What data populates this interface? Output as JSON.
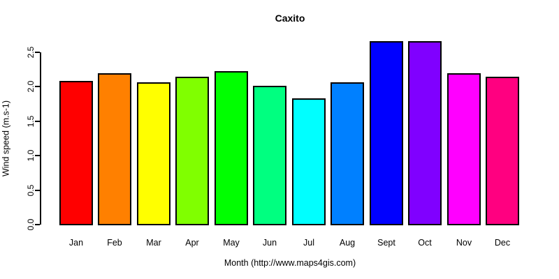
{
  "chart_data": {
    "type": "bar",
    "title": "Caxito",
    "xlabel": "Month (http://www.maps4gis.com)",
    "ylabel": "Wind speed (m.s-1)",
    "categories": [
      "Jan",
      "Feb",
      "Mar",
      "Apr",
      "May",
      "Jun",
      "Jul",
      "Aug",
      "Sept",
      "Oct",
      "Nov",
      "Dec"
    ],
    "values": [
      2.08,
      2.19,
      2.06,
      2.14,
      2.22,
      2.01,
      1.83,
      2.06,
      2.66,
      2.66,
      2.19,
      2.14
    ],
    "bar_colors": [
      "#FF0000",
      "#FF8000",
      "#FFFF00",
      "#80FF00",
      "#00FF00",
      "#00FF80",
      "#00FFFF",
      "#0080FF",
      "#0000FF",
      "#8000FF",
      "#FF00FF",
      "#FF0080"
    ],
    "bar_border_color": "#000000",
    "yticks": [
      0.0,
      0.5,
      1.0,
      1.5,
      2.0,
      2.5
    ],
    "ytick_labels": [
      "0.0",
      "0.5",
      "1.0",
      "1.5",
      "2.0",
      "2.5"
    ],
    "ylim": [
      0,
      2.75
    ],
    "grid": false,
    "legend": "none",
    "background": "#FFFFFF",
    "text_color": "#000000"
  }
}
